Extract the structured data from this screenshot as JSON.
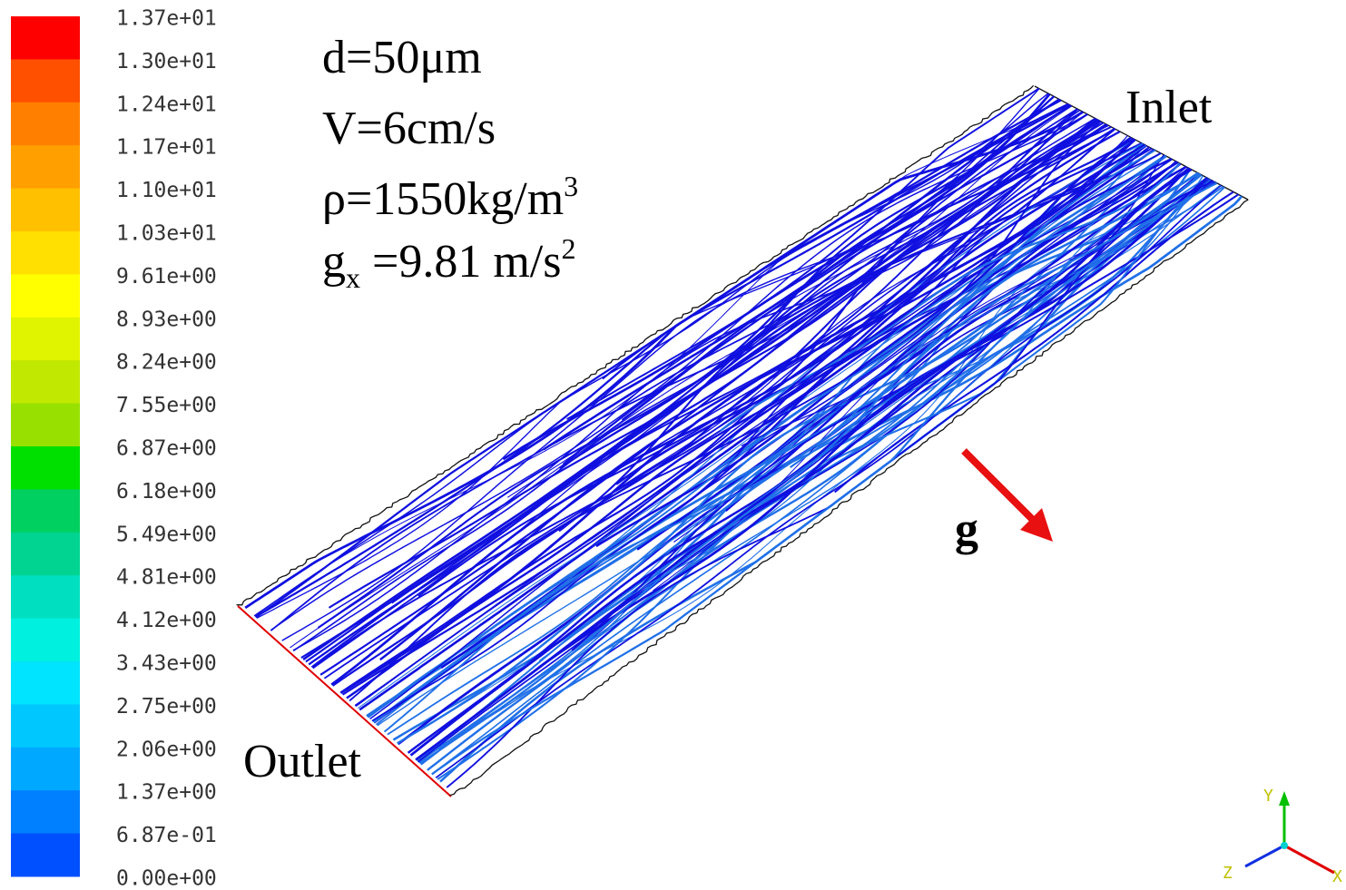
{
  "colorbar": {
    "labels": [
      "1.37e+01",
      "1.30e+01",
      "1.24e+01",
      "1.17e+01",
      "1.10e+01",
      "1.03e+01",
      "9.61e+00",
      "8.93e+00",
      "8.24e+00",
      "7.55e+00",
      "6.87e+00",
      "6.18e+00",
      "5.49e+00",
      "4.81e+00",
      "4.12e+00",
      "3.43e+00",
      "2.75e+00",
      "2.06e+00",
      "1.37e+00",
      "6.87e-01",
      "0.00e+00"
    ],
    "colors": [
      "#ff0000",
      "#ff5000",
      "#ff8000",
      "#ffa000",
      "#ffc000",
      "#ffe000",
      "#ffff00",
      "#e0f400",
      "#c0e800",
      "#98e000",
      "#00e000",
      "#00d060",
      "#00d490",
      "#00e0c0",
      "#00f0e0",
      "#00e4ff",
      "#00c8ff",
      "#00a8ff",
      "#0080ff",
      "#0050ff"
    ]
  },
  "annotations": {
    "diameter": "d=50μm",
    "velocity": "V=6cm/s",
    "density": {
      "text": "ρ=1550kg/m",
      "sup": "3"
    },
    "gravity": {
      "g": "g",
      "sub": "x",
      "text": " =9.81 m/s",
      "sup": "2"
    },
    "inlet": "Inlet",
    "outlet": "Outlet",
    "g_arrow": "g"
  },
  "axes": {
    "y": "Y",
    "z": "Z",
    "x": "X"
  }
}
